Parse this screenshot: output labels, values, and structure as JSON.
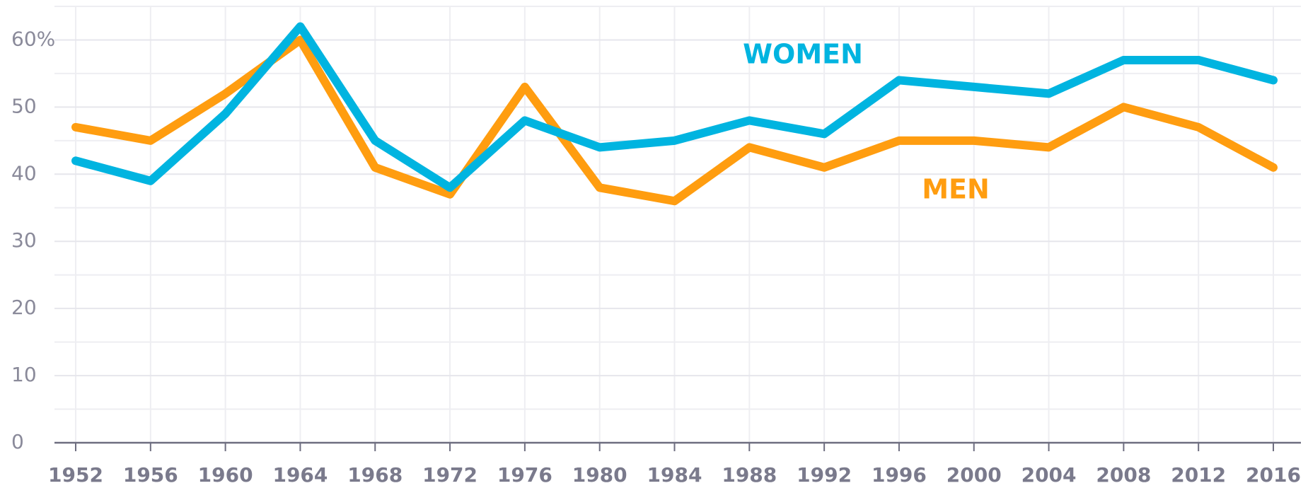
{
  "chart_data": {
    "type": "line",
    "x": [
      1952,
      1956,
      1960,
      1964,
      1968,
      1972,
      1976,
      1980,
      1984,
      1988,
      1992,
      1996,
      2000,
      2004,
      2008,
      2012,
      2016
    ],
    "xlim": [
      1952,
      2016
    ],
    "xticks": [
      1952,
      1956,
      1960,
      1964,
      1968,
      1972,
      1976,
      1980,
      1984,
      1988,
      1992,
      1996,
      2000,
      2004,
      2008,
      2012,
      2016
    ],
    "ylim": [
      0,
      65
    ],
    "yticks": [
      0,
      10,
      20,
      30,
      40,
      50,
      {
        "value": 60,
        "label": "60%"
      }
    ],
    "minor_yticks": [
      5,
      15,
      25,
      35,
      45,
      55,
      65
    ],
    "grid": true,
    "series": [
      {
        "name": "WOMEN",
        "color": "#00b4e0",
        "values": [
          42,
          39,
          49,
          62,
          45,
          38,
          48,
          44,
          45,
          48,
          46,
          54,
          53,
          52,
          57,
          57,
          54
        ]
      },
      {
        "name": "MEN",
        "color": "#ff9d10",
        "values": [
          47,
          45,
          52,
          60,
          41,
          37,
          53,
          38,
          36,
          44,
          41,
          45,
          45,
          44,
          50,
          47,
          41
        ]
      }
    ]
  }
}
